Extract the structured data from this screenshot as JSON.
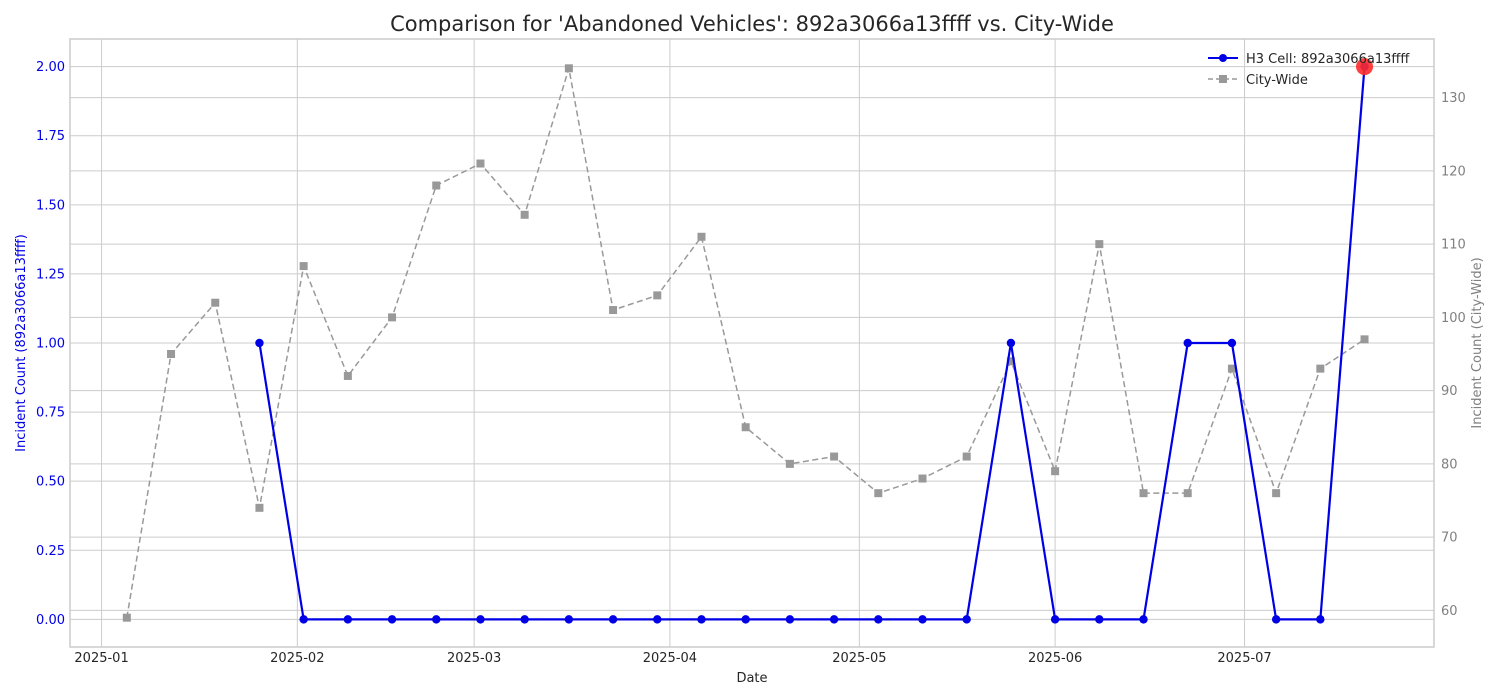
{
  "chart_data": {
    "type": "line",
    "title": "Comparison for 'Abandoned Vehicles': 892a3066a13ffff vs. City-Wide",
    "xlabel": "Date",
    "ylabel_left": "Incident Count (892a3066a13ffff)",
    "ylabel_right": "Incident Count (City-Wide)",
    "x_ticks": [
      "2025-01-01",
      "2025-02-01",
      "2025-03-01",
      "2025-04-01",
      "2025-05-01",
      "2025-06-01",
      "2025-07-01"
    ],
    "x_tick_labels": [
      "2025-01",
      "2025-02",
      "2025-03",
      "2025-04",
      "2025-05",
      "2025-06",
      "2025-07"
    ],
    "xlim": [
      "2024-12-27",
      "2025-07-31"
    ],
    "ylim_left": [
      -0.1,
      2.1
    ],
    "ylim_right": [
      55,
      138
    ],
    "y_ticks_left": [
      "0.00",
      "0.25",
      "0.50",
      "0.75",
      "1.00",
      "1.25",
      "1.50",
      "1.75",
      "2.00"
    ],
    "y_ticks_right": [
      "60",
      "70",
      "80",
      "90",
      "100",
      "110",
      "120",
      "130"
    ],
    "grid": true,
    "legend_position": "top-right",
    "series": [
      {
        "name": "H3 Cell: 892a3066a13ffff",
        "axis": "left",
        "color": "#0000e6",
        "style": "solid",
        "marker": "circle",
        "x": [
          "2025-01-26",
          "2025-02-02",
          "2025-02-09",
          "2025-02-16",
          "2025-02-23",
          "2025-03-02",
          "2025-03-09",
          "2025-03-16",
          "2025-03-23",
          "2025-03-30",
          "2025-04-06",
          "2025-04-13",
          "2025-04-20",
          "2025-04-27",
          "2025-05-04",
          "2025-05-11",
          "2025-05-18",
          "2025-05-25",
          "2025-06-01",
          "2025-06-08",
          "2025-06-15",
          "2025-06-22",
          "2025-06-29",
          "2025-07-06",
          "2025-07-13",
          "2025-07-20"
        ],
        "values": [
          1,
          0,
          0,
          0,
          0,
          0,
          0,
          0,
          0,
          0,
          0,
          0,
          0,
          0,
          0,
          0,
          0,
          1,
          0,
          0,
          0,
          1,
          1,
          0,
          0,
          2
        ]
      },
      {
        "name": "City-Wide",
        "axis": "right",
        "color": "#999999",
        "style": "dashed",
        "marker": "square",
        "x": [
          "2025-01-05",
          "2025-01-12",
          "2025-01-19",
          "2025-01-26",
          "2025-02-02",
          "2025-02-09",
          "2025-02-16",
          "2025-02-23",
          "2025-03-02",
          "2025-03-09",
          "2025-03-16",
          "2025-03-23",
          "2025-03-30",
          "2025-04-06",
          "2025-04-13",
          "2025-04-20",
          "2025-04-27",
          "2025-05-04",
          "2025-05-11",
          "2025-05-18",
          "2025-05-25",
          "2025-06-01",
          "2025-06-08",
          "2025-06-15",
          "2025-06-22",
          "2025-06-29",
          "2025-07-06",
          "2025-07-13",
          "2025-07-20"
        ],
        "values": [
          59,
          95,
          102,
          74,
          107,
          92,
          100,
          118,
          121,
          114,
          134,
          101,
          103,
          111,
          85,
          80,
          81,
          76,
          78,
          81,
          94,
          79,
          110,
          76,
          76,
          93,
          76,
          93,
          97
        ]
      }
    ],
    "highlight": {
      "series": 0,
      "index": 25,
      "color": "#ff2a2a"
    }
  }
}
